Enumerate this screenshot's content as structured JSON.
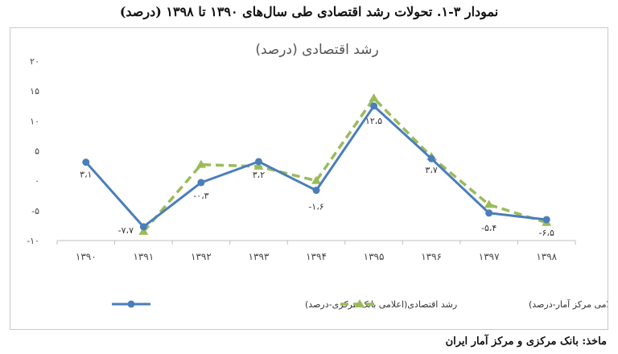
{
  "figure": {
    "title": "نمودار ۳-۱. تحولات رشد اقتصادی طی سال‌های ۱۳۹۰ تا ۱۳۹۸ (درصد)",
    "source": "ماخذ: بانک مرکزی و مرکز آمار ایران"
  },
  "chart_data": {
    "type": "line",
    "title": "رشد اقتصادی (درصد)",
    "x": [
      "۱۳۹۰",
      "۱۳۹۱",
      "۱۳۹۲",
      "۱۳۹۳",
      "۱۳۹۴",
      "۱۳۹۵",
      "۱۳۹۶",
      "۱۳۹۷",
      "۱۳۹۸"
    ],
    "ylim": [
      -10,
      20
    ],
    "yticks": [
      -10,
      -5,
      0,
      5,
      10,
      15,
      20
    ],
    "ytick_labels": [
      "-۱۰",
      "-۵",
      "۰",
      "۵",
      "۱۰",
      "۱۵",
      "۲۰"
    ],
    "grid": false,
    "legend_position": "bottom",
    "series": [
      {
        "name": "رشد اقتصادی(اعلامی بانک مرکزی-درصد)",
        "color": "#4a7ebb",
        "style": "solid",
        "marker": "circle",
        "values": [
          3.1,
          -7.7,
          -0.3,
          3.2,
          -1.6,
          12.5,
          3.7,
          -5.4,
          -6.5
        ],
        "labels": [
          "۳،۱",
          "-۷،۷",
          "-۰،۳",
          "۳،۲",
          "-۱،۶",
          "۱۲،۵",
          "۳،۷",
          "-۵،۴",
          "-۶،۵"
        ]
      },
      {
        "name": "رشد اقتصادی(اعلامی مرکز آمار-درصد)",
        "color": "#9bbb59",
        "style": "dashed",
        "marker": "triangle",
        "values": [
          null,
          -8.5,
          2.7,
          2.4,
          0.0,
          13.8,
          4.0,
          -4.0,
          -7.0
        ]
      }
    ]
  }
}
